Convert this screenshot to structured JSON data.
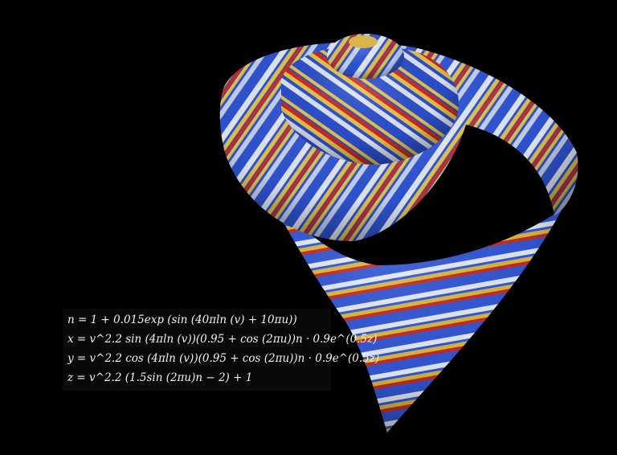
{
  "equations": [
    "n = 1 + 0.015exp (sin (40πln (v) + 10πu))",
    "x = v^2.2 sin (4πln (v))(0.95 + cos (2πu))n · 0.9e^(0.5z)",
    "y = v^2.2 cos (4πln (v))(0.95 + cos (2πu))n · 0.9e^(0.5z)",
    "z = v^2.2 (1.5sin (2πu)n − 2) + 1"
  ],
  "colors": {
    "background": "#000000",
    "shell_blue": "#2f55d6",
    "shell_red": "#d12a1d",
    "shell_yellow": "#e8c64a",
    "shell_white": "#e6ecf6"
  }
}
